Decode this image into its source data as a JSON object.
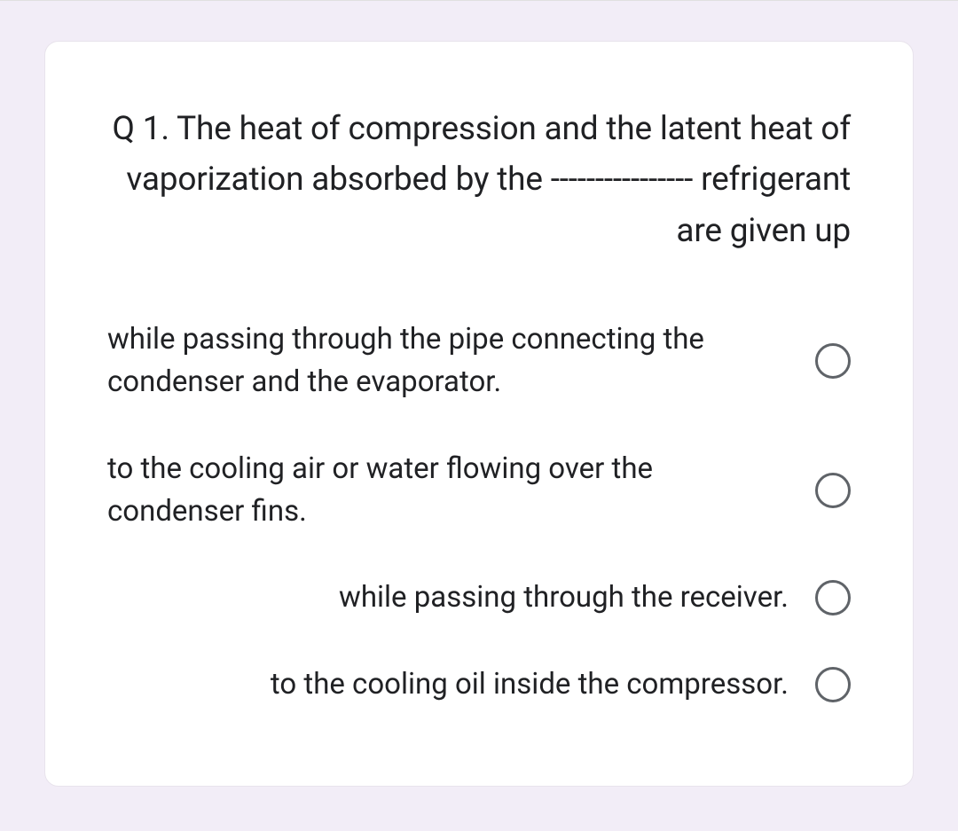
{
  "card": {
    "background_color": "#ffffff",
    "border_radius": 16,
    "border_color": "#e8e3ec"
  },
  "page": {
    "background_color": "#f2edf7"
  },
  "question": {
    "text": "Q 1. The heat of compression and the latent heat of vaporization absorbed by the ---------------- refrigerant are given up",
    "fontsize": 37,
    "color": "#202124",
    "align": "right"
  },
  "options": [
    {
      "text": "while passing through the pipe connecting the condenser and the evaporator.",
      "align": "left",
      "selected": false
    },
    {
      "text": "to the cooling air or water flowing over the condenser fins.",
      "align": "left",
      "selected": false
    },
    {
      "text": "while passing through the receiver.",
      "align": "right",
      "selected": false
    },
    {
      "text": "to the cooling oil inside the compressor.",
      "align": "right",
      "selected": false
    }
  ],
  "radio": {
    "border_color": "#5f6368",
    "size": 40
  }
}
